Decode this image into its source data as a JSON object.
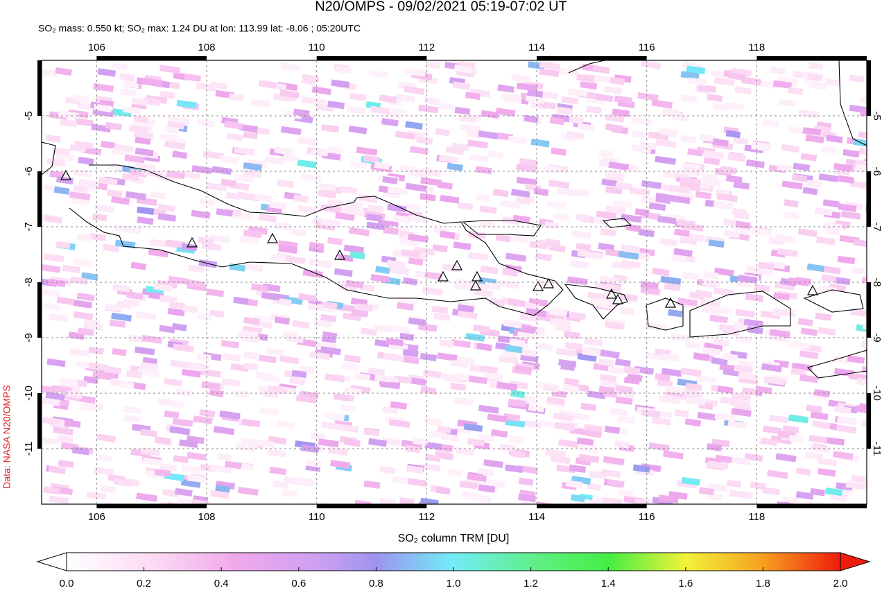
{
  "chart_data": {
    "type": "map",
    "title": "N20/OMPS - 09/02/2021 05:19-07:02 UT",
    "subtitle": "SO₂ mass: 0.550 kt; SO₂ max: 1.24 DU at lon: 113.99 lat: -8.06 ; 05:20UTC",
    "credit": "Data: NASA N20/OMPS",
    "xlim": [
      105,
      120
    ],
    "ylim": [
      -12,
      -4
    ],
    "xticks": [
      106,
      108,
      110,
      112,
      114,
      116,
      118
    ],
    "yticks": [
      -11,
      -10,
      -9,
      -8,
      -7,
      -6,
      -5
    ],
    "grid": true,
    "colorbar": {
      "label": "SO₂ column TRM [DU]",
      "lim": [
        0,
        2
      ],
      "ticks": [
        {
          "value": 0,
          "label": "0.0"
        },
        {
          "value": 0.2,
          "label": "0.2"
        },
        {
          "value": 0.4,
          "label": "0.4"
        },
        {
          "value": 0.6,
          "label": "0.6"
        },
        {
          "value": 0.8,
          "label": "0.8"
        },
        {
          "value": 1,
          "label": "1.0"
        },
        {
          "value": 1.2,
          "label": "1.2"
        },
        {
          "value": 1.4,
          "label": "1.4"
        },
        {
          "value": 1.6,
          "label": "1.6"
        },
        {
          "value": 1.8,
          "label": "1.8"
        },
        {
          "value": 2,
          "label": "2.0"
        }
      ]
    }
  }
}
